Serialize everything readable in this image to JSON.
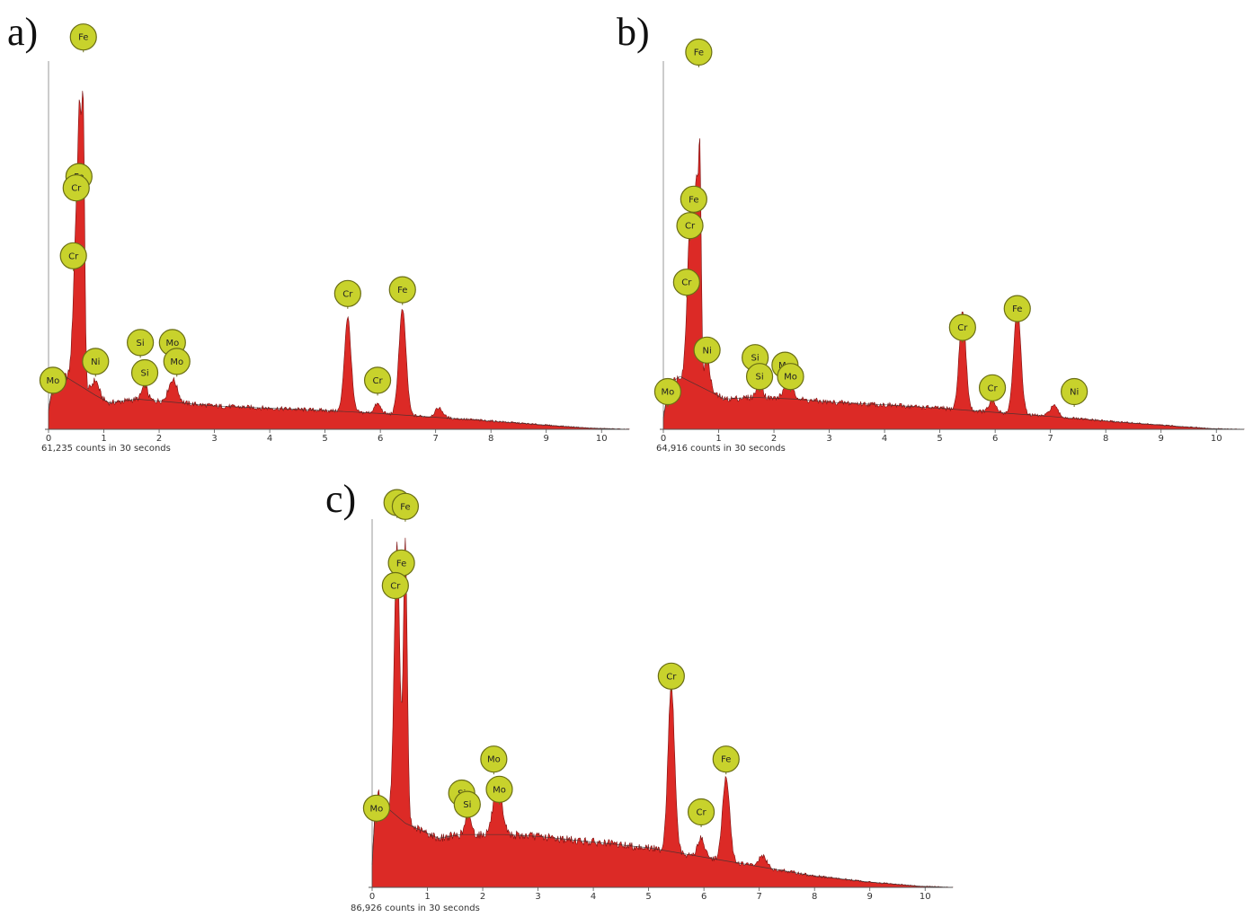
{
  "colors": {
    "fill": "#dc2a26",
    "edge": "#7a1010",
    "marker_fill": "#c8d22c",
    "marker_stroke": "#6a6e14",
    "axis": "#555555"
  },
  "chart_data": [
    {
      "type": "area",
      "panel_label": "a)",
      "caption": "61,235 counts in 30 seconds",
      "xlim": [
        0,
        10.5
      ],
      "ylim": [
        0,
        100
      ],
      "xticks": [
        "0",
        "1",
        "2",
        "3",
        "4",
        "5",
        "6",
        "7",
        "8",
        "9",
        "10"
      ],
      "background": [
        [
          0,
          5
        ],
        [
          0.08,
          12
        ],
        [
          0.3,
          14
        ],
        [
          0.85,
          9
        ],
        [
          1.1,
          7
        ],
        [
          1.6,
          8
        ],
        [
          2.4,
          7
        ],
        [
          3,
          6.2
        ],
        [
          4,
          5.6
        ],
        [
          5,
          5
        ],
        [
          6,
          4.2
        ],
        [
          7,
          3.2
        ],
        [
          8,
          2.2
        ],
        [
          9,
          1.1
        ],
        [
          9.8,
          0.3
        ],
        [
          10.5,
          0
        ]
      ],
      "peaks": [
        {
          "x": 0.52,
          "h": 48,
          "w": 0.06
        },
        {
          "x": 0.57,
          "h": 38,
          "w": 0.03
        },
        {
          "x": 0.63,
          "h": 62,
          "w": 0.025
        },
        {
          "x": 0.85,
          "h": 4,
          "w": 0.06
        },
        {
          "x": 1.74,
          "h": 4,
          "w": 0.05
        },
        {
          "x": 2.25,
          "h": 6,
          "w": 0.08
        },
        {
          "x": 5.41,
          "h": 25,
          "w": 0.06
        },
        {
          "x": 5.95,
          "h": 2.5,
          "w": 0.06
        },
        {
          "x": 6.4,
          "h": 28,
          "w": 0.065
        },
        {
          "x": 7.06,
          "h": 2.5,
          "w": 0.07
        }
      ],
      "markers": [
        {
          "label": "Fe",
          "x": 0.63,
          "y": 104
        },
        {
          "label": "Fe",
          "x": 0.55,
          "y": 67
        },
        {
          "label": "Cr",
          "x": 0.5,
          "y": 64
        },
        {
          "label": "Cr",
          "x": 0.45,
          "y": 46
        },
        {
          "label": "Mo",
          "x": 0.08,
          "y": 13
        },
        {
          "label": "Ni",
          "x": 0.85,
          "y": 18
        },
        {
          "label": "Si",
          "x": 1.66,
          "y": 23
        },
        {
          "label": "Si",
          "x": 1.74,
          "y": 15
        },
        {
          "label": "Mo",
          "x": 2.24,
          "y": 23
        },
        {
          "label": "Mo",
          "x": 2.32,
          "y": 18
        },
        {
          "label": "Cr",
          "x": 5.41,
          "y": 36
        },
        {
          "label": "Cr",
          "x": 5.95,
          "y": 13
        },
        {
          "label": "Fe",
          "x": 6.4,
          "y": 37
        }
      ]
    },
    {
      "type": "area",
      "panel_label": "b)",
      "caption": "64,916 counts in 30 seconds",
      "xlim": [
        0,
        10.5
      ],
      "ylim": [
        0,
        100
      ],
      "xticks": [
        "0",
        "1",
        "2",
        "3",
        "4",
        "5",
        "6",
        "7",
        "8",
        "9",
        "10"
      ],
      "background": [
        [
          0,
          3
        ],
        [
          0.1,
          12
        ],
        [
          0.3,
          14
        ],
        [
          0.85,
          10
        ],
        [
          1.1,
          8
        ],
        [
          1.6,
          8.5
        ],
        [
          2.4,
          8
        ],
        [
          3,
          7.2
        ],
        [
          4,
          6.5
        ],
        [
          5,
          5.6
        ],
        [
          6,
          4.5
        ],
        [
          7,
          3.4
        ],
        [
          8,
          2.2
        ],
        [
          9,
          1.1
        ],
        [
          9.9,
          0.2
        ],
        [
          10.5,
          0
        ]
      ],
      "peaks": [
        {
          "x": 0.5,
          "h": 48,
          "w": 0.06
        },
        {
          "x": 0.6,
          "h": 40,
          "w": 0.03
        },
        {
          "x": 0.66,
          "h": 58,
          "w": 0.025
        },
        {
          "x": 0.79,
          "h": 9,
          "w": 0.05
        },
        {
          "x": 1.74,
          "h": 5,
          "w": 0.05
        },
        {
          "x": 2.27,
          "h": 5,
          "w": 0.08
        },
        {
          "x": 5.41,
          "h": 26,
          "w": 0.06
        },
        {
          "x": 5.95,
          "h": 3,
          "w": 0.06
        },
        {
          "x": 6.4,
          "h": 28,
          "w": 0.065
        },
        {
          "x": 7.06,
          "h": 3,
          "w": 0.07
        }
      ],
      "markers": [
        {
          "label": "Fe",
          "x": 0.64,
          "y": 100
        },
        {
          "label": "Fe",
          "x": 0.55,
          "y": 61
        },
        {
          "label": "Cr",
          "x": 0.48,
          "y": 54
        },
        {
          "label": "Cr",
          "x": 0.42,
          "y": 39
        },
        {
          "label": "Mo",
          "x": 0.08,
          "y": 10
        },
        {
          "label": "Ni",
          "x": 0.79,
          "y": 21
        },
        {
          "label": "Si",
          "x": 1.66,
          "y": 19
        },
        {
          "label": "Si",
          "x": 1.74,
          "y": 14
        },
        {
          "label": "Mo",
          "x": 2.2,
          "y": 17
        },
        {
          "label": "Mo",
          "x": 2.3,
          "y": 14
        },
        {
          "label": "Cr",
          "x": 5.41,
          "y": 27
        },
        {
          "label": "Cr",
          "x": 5.95,
          "y": 11
        },
        {
          "label": "Fe",
          "x": 6.4,
          "y": 32
        },
        {
          "label": "Ni",
          "x": 7.43,
          "y": 10
        }
      ]
    },
    {
      "type": "area",
      "panel_label": "c)",
      "caption": "86,926 counts in 30 seconds",
      "xlim": [
        0,
        10.5
      ],
      "ylim": [
        0,
        100
      ],
      "xticks": [
        "0",
        "1",
        "2",
        "3",
        "4",
        "5",
        "6",
        "7",
        "8",
        "9",
        "10"
      ],
      "background": [
        [
          0,
          6
        ],
        [
          0.05,
          20
        ],
        [
          0.2,
          22
        ],
        [
          0.6,
          17
        ],
        [
          0.9,
          15
        ],
        [
          1.2,
          13
        ],
        [
          1.6,
          14
        ],
        [
          2.4,
          14
        ],
        [
          3,
          13.5
        ],
        [
          4,
          12
        ],
        [
          5,
          10.5
        ],
        [
          6,
          8
        ],
        [
          7,
          5.5
        ],
        [
          8,
          3
        ],
        [
          9,
          1.4
        ],
        [
          9.9,
          0.3
        ],
        [
          10.5,
          0
        ]
      ],
      "peaks": [
        {
          "x": 0.12,
          "h": 4,
          "w": 0.04
        },
        {
          "x": 0.45,
          "h": 72,
          "w": 0.05
        },
        {
          "x": 0.6,
          "h": 74,
          "w": 0.035
        },
        {
          "x": 1.74,
          "h": 6,
          "w": 0.05
        },
        {
          "x": 2.27,
          "h": 13,
          "w": 0.08
        },
        {
          "x": 5.41,
          "h": 44,
          "w": 0.06
        },
        {
          "x": 5.95,
          "h": 5,
          "w": 0.06
        },
        {
          "x": 6.4,
          "h": 22,
          "w": 0.065
        },
        {
          "x": 7.06,
          "h": 3,
          "w": 0.07
        }
      ],
      "markers": [
        {
          "label": "Cr",
          "x": 0.45,
          "y": 102
        },
        {
          "label": "Fe",
          "x": 0.6,
          "y": 101
        },
        {
          "label": "Fe",
          "x": 0.53,
          "y": 86
        },
        {
          "label": "Cr",
          "x": 0.42,
          "y": 80
        },
        {
          "label": "Mo",
          "x": 0.08,
          "y": 21
        },
        {
          "label": "Si",
          "x": 1.62,
          "y": 25
        },
        {
          "label": "Si",
          "x": 1.72,
          "y": 22
        },
        {
          "label": "Mo",
          "x": 2.2,
          "y": 34
        },
        {
          "label": "Mo",
          "x": 2.3,
          "y": 26
        },
        {
          "label": "Cr",
          "x": 5.41,
          "y": 56
        },
        {
          "label": "Cr",
          "x": 5.95,
          "y": 20
        },
        {
          "label": "Fe",
          "x": 6.4,
          "y": 34
        }
      ]
    }
  ]
}
